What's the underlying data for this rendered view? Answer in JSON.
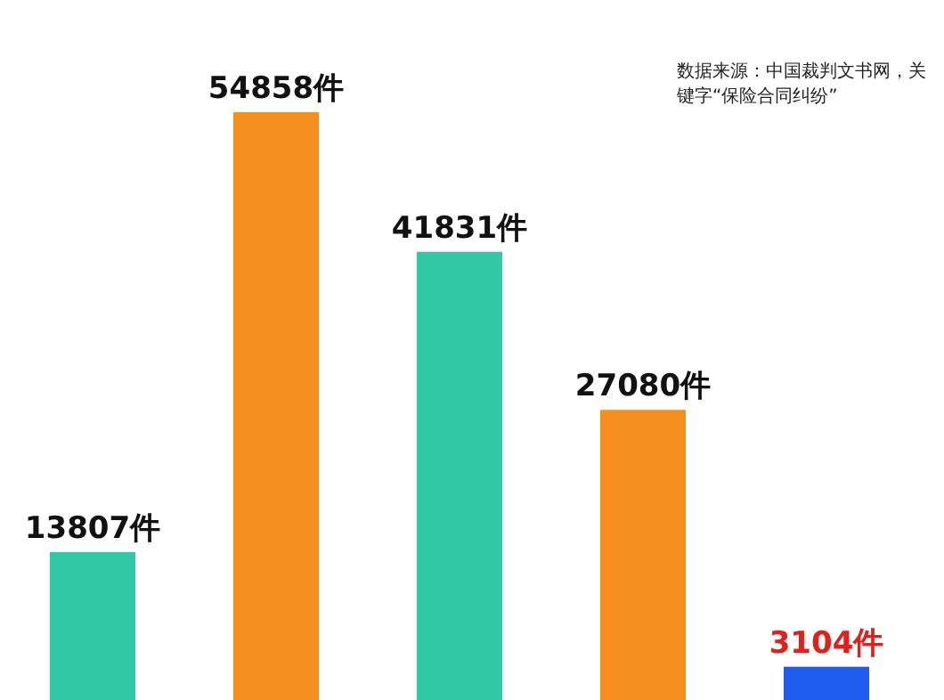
{
  "chart_data": {
    "type": "bar",
    "categories": [
      null,
      null,
      null,
      null,
      null
    ],
    "values": [
      13807,
      54858,
      41831,
      27080,
      3104
    ],
    "value_labels": [
      "13807件",
      "54858件",
      "41831件",
      "27080件",
      "3104件"
    ],
    "colors": [
      "#2fc9a6",
      "#f5901e",
      "#2fc9a6",
      "#f5901e",
      "#1f5cf0"
    ],
    "annotations": [
      "数据来源：中国裁判文书网，关键字“保险合同纠纷”"
    ]
  }
}
